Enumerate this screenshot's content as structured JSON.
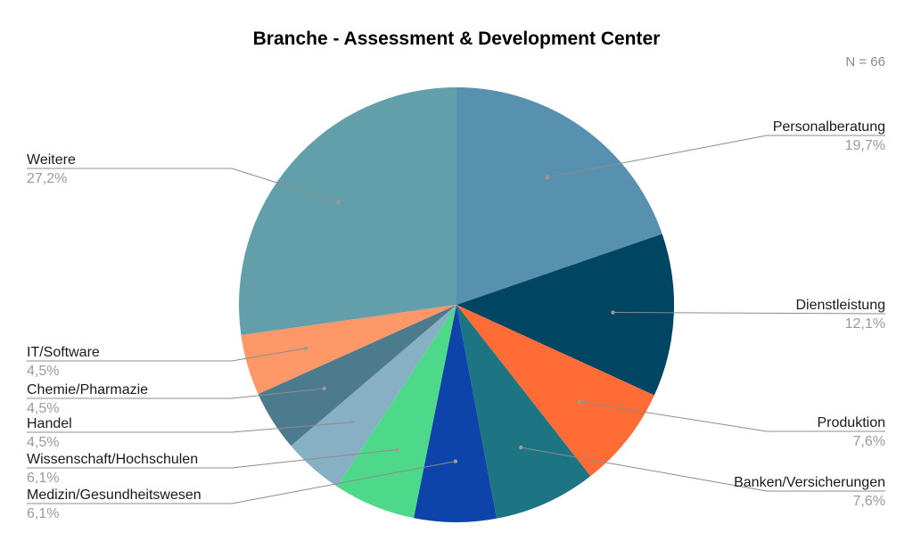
{
  "chart_data": {
    "type": "pie",
    "title": "Branche - Assessment & Development Center",
    "n_label": "N = 66",
    "slices": [
      {
        "label": "Personalberatung",
        "value": 19.7,
        "percent_label": "19,7%",
        "color": "#5891b0"
      },
      {
        "label": "Dienstleistung",
        "value": 12.1,
        "percent_label": "12,1%",
        "color": "#004561"
      },
      {
        "label": "Produktion",
        "value": 7.6,
        "percent_label": "7,6%",
        "color": "#ff6c35"
      },
      {
        "label": "Banken/Versicherungen",
        "value": 7.6,
        "percent_label": "7,6%",
        "color": "#1d7584"
      },
      {
        "label": "Medizin/Gesundheitswesen",
        "value": 6.1,
        "percent_label": "6,1%",
        "color": "#0e44a9"
      },
      {
        "label": "Wissenschaft/Hochschulen",
        "value": 6.1,
        "percent_label": "6,1%",
        "color": "#4ed98a"
      },
      {
        "label": "Handel",
        "value": 4.5,
        "percent_label": "4,5%",
        "color": "#88b0c5"
      },
      {
        "label": "Chemie/Pharmazie",
        "value": 4.5,
        "percent_label": "4,5%",
        "color": "#4c7b8e"
      },
      {
        "label": "IT/Software",
        "value": 4.5,
        "percent_label": "4,5%",
        "color": "#ff9868"
      },
      {
        "label": "Weitere",
        "value": 27.2,
        "percent_label": "27,2%",
        "color": "#639faa"
      }
    ]
  }
}
